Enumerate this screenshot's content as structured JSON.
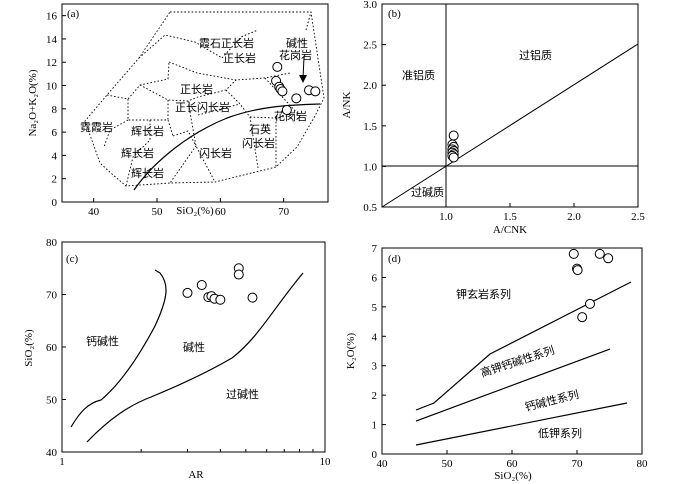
{
  "chart_data": [
    {
      "id": "a",
      "type": "scatter",
      "panel_label": "(a)",
      "xlabel": "SiO₂(%)",
      "ylabel": "Na₂O+K₂O(%)",
      "xlim": [
        35,
        77
      ],
      "ylim": [
        0,
        17
      ],
      "xticks": [
        40,
        50,
        60,
        70
      ],
      "yticks": [
        0,
        2,
        4,
        6,
        8,
        10,
        12,
        14,
        16
      ],
      "fields": [
        "霞石正长岩",
        "正长岩",
        "碱性",
        "花岗岩",
        "正长岩",
        "正长闪长岩",
        "霓霞岩",
        "辉长岩",
        "辉长岩",
        "辉长岩",
        "闪长岩",
        "石英",
        "闪长岩",
        "花岗岩"
      ],
      "points": [
        {
          "x": 69.0,
          "y": 11.6
        },
        {
          "x": 68.8,
          "y": 10.4
        },
        {
          "x": 69.3,
          "y": 9.9
        },
        {
          "x": 69.5,
          "y": 9.7
        },
        {
          "x": 69.8,
          "y": 9.5
        },
        {
          "x": 70.5,
          "y": 7.9
        },
        {
          "x": 72.0,
          "y": 8.9
        },
        {
          "x": 74.0,
          "y": 9.6
        },
        {
          "x": 75.0,
          "y": 9.5
        }
      ]
    },
    {
      "id": "b",
      "type": "scatter",
      "panel_label": "(b)",
      "xlabel": "A/CNK",
      "ylabel": "A/NK",
      "xlim": [
        0.5,
        2.5
      ],
      "ylim": [
        0.5,
        3.0
      ],
      "xticks": [
        "1.0",
        "1.5",
        "2.0",
        "2.5"
      ],
      "yticks": [
        "0.5",
        "1.0",
        "1.5",
        "2.0",
        "2.5",
        "3.0"
      ],
      "fields": [
        "准铝质",
        "过铝质",
        "过碱质"
      ],
      "points": [
        {
          "x": 1.06,
          "y": 1.38
        },
        {
          "x": 1.05,
          "y": 1.27
        },
        {
          "x": 1.06,
          "y": 1.24
        },
        {
          "x": 1.05,
          "y": 1.21
        },
        {
          "x": 1.06,
          "y": 1.19
        },
        {
          "x": 1.05,
          "y": 1.17
        },
        {
          "x": 1.06,
          "y": 1.15
        },
        {
          "x": 1.05,
          "y": 1.13
        },
        {
          "x": 1.06,
          "y": 1.11
        }
      ]
    },
    {
      "id": "c",
      "type": "scatter",
      "panel_label": "(c)",
      "xlabel": "AR",
      "ylabel": "SiO₂(%)",
      "xscale": "log",
      "xlim": [
        1,
        10
      ],
      "ylim": [
        40,
        80
      ],
      "xticks": [
        1,
        10
      ],
      "yticks": [
        40,
        50,
        60,
        70,
        80
      ],
      "fields": [
        "钙碱性",
        "碱性",
        "过碱性"
      ],
      "points": [
        {
          "x": 3.0,
          "y": 70.3
        },
        {
          "x": 3.4,
          "y": 71.8
        },
        {
          "x": 3.6,
          "y": 69.5
        },
        {
          "x": 3.7,
          "y": 69.7
        },
        {
          "x": 3.8,
          "y": 69.2
        },
        {
          "x": 4.0,
          "y": 69.0
        },
        {
          "x": 4.7,
          "y": 75.0
        },
        {
          "x": 4.7,
          "y": 73.8
        },
        {
          "x": 5.3,
          "y": 69.4
        }
      ]
    },
    {
      "id": "d",
      "type": "scatter",
      "panel_label": "(d)",
      "xlabel": "SiO₂(%)",
      "ylabel": "K₂O(%)",
      "xlim": [
        40,
        80
      ],
      "ylim": [
        0,
        7
      ],
      "xticks": [
        40,
        50,
        60,
        70,
        80
      ],
      "yticks": [
        0,
        1,
        2,
        3,
        4,
        5,
        6,
        7
      ],
      "fields": [
        "钾玄岩系列",
        "高钾钙碱性系列",
        "钙碱性系列",
        "低钾系列"
      ],
      "points": [
        {
          "x": 69.5,
          "y": 6.8
        },
        {
          "x": 70.0,
          "y": 6.3
        },
        {
          "x": 70.1,
          "y": 6.25
        },
        {
          "x": 73.5,
          "y": 6.8
        },
        {
          "x": 74.8,
          "y": 6.65
        },
        {
          "x": 72.0,
          "y": 5.1
        },
        {
          "x": 70.8,
          "y": 4.65
        }
      ]
    }
  ]
}
